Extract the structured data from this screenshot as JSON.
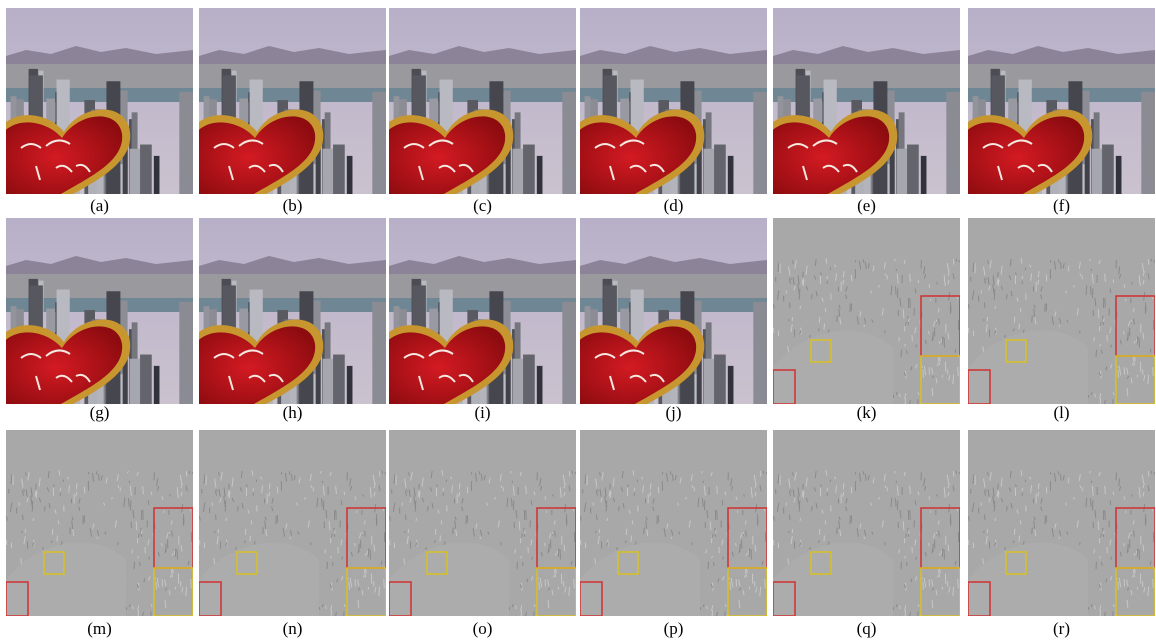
{
  "photos": [
    "(a)",
    "(b)",
    "(c)",
    "(d)",
    "(e)",
    "(f)",
    "(g)",
    "(h)",
    "(i)",
    "(j)"
  ],
  "residuals": [
    "(k)",
    "(l)",
    "(m)",
    "(n)",
    "(o)",
    "(p)",
    "(q)",
    "(r)"
  ]
}
